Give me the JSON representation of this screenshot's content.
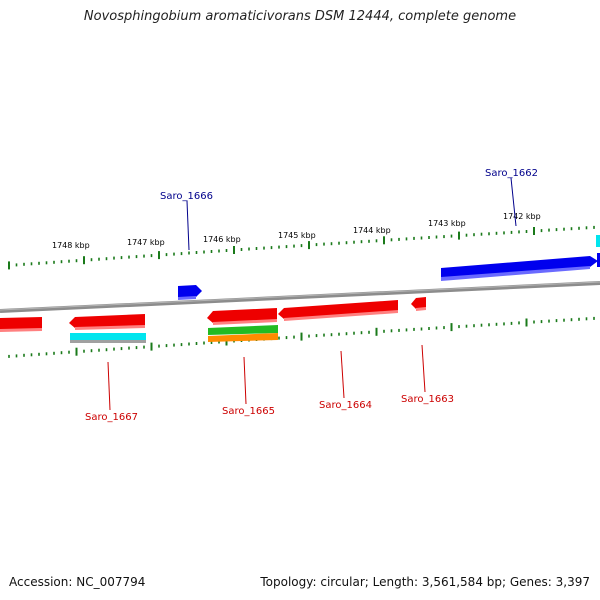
{
  "title": "Novosphingobium aromaticivorans DSM 12444, complete genome",
  "footer": {
    "accession": "Accession: NC_007794",
    "summary": "Topology: circular; Length: 3,561,584 bp; Genes: 3,397"
  },
  "colors": {
    "backbone": "#808080",
    "tick": "#1a7a1a",
    "forward_gene": "#0000ee",
    "reverse_gene": "#ee0000",
    "cyan_feature": "#00e5ee",
    "green_feature": "#22bb22",
    "orange_feature": "#ff8c00",
    "forward_label": "#00008b",
    "reverse_label": "#cc0000"
  },
  "ticks": [
    "1748 kbp",
    "1747 kbp",
    "1746 kbp",
    "1745 kbp",
    "1744 kbp",
    "1743 kbp",
    "1742 kbp"
  ],
  "genes": {
    "forward": [
      "Saro_1666",
      "Saro_1662"
    ],
    "reverse": [
      "Saro_1667",
      "Saro_1665",
      "Saro_1664",
      "Saro_1663"
    ]
  }
}
